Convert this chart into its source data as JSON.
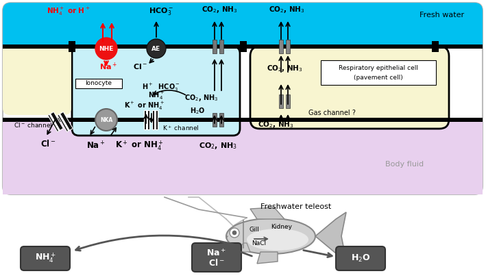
{
  "fig_w": 7.09,
  "fig_h": 4.09,
  "dpi": 100,
  "fresh_water_color": "#00c0f0",
  "ionocyte_color": "#c8f0f8",
  "pavement_color": "#f8f5d0",
  "body_fluid_color": "#e8d0ee",
  "membrane_color": "#111111",
  "NHE_color": "#ee1111",
  "AE_color": "#2a2a2a",
  "NKA_color": "#888888",
  "channel_color": "#666666",
  "box_color": "#555555",
  "arrow_gray": "#555555",
  "fresh_water_label": "Fresh water",
  "body_fluid_label": "Body fluid",
  "ionocyte_label": "Ionocyte",
  "pavement_line1": "Respiratory epithelial cell",
  "pavement_line2": "(pavement cell)",
  "gas_channel_label": "Gas channel ?",
  "teleost_label": "Freshwater teleost",
  "gill_label": "Gill",
  "kidney_label": "Kidney",
  "nacl_label": "NaCl"
}
